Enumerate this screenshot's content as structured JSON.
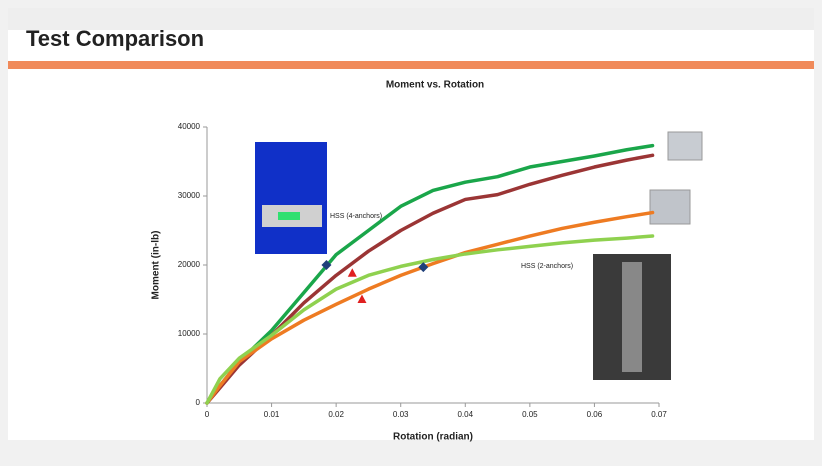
{
  "header": {
    "title": "Test Comparison"
  },
  "chart_data": {
    "type": "line",
    "title": "Moment vs. Rotation",
    "x_label": "Rotation (radian)",
    "y_label": "Moment (in-lb)",
    "x": [
      0,
      0.002,
      0.005,
      0.01,
      0.015,
      0.02,
      0.025,
      0.03,
      0.035,
      0.04,
      0.045,
      0.05,
      0.055,
      0.06,
      0.065,
      0.069
    ],
    "series": [
      {
        "color": "#1aa64a",
        "values": [
          0,
          2500,
          6000,
          10500,
          16000,
          21500,
          25000,
          28500,
          30800,
          32000,
          32800,
          34200,
          35000,
          35800,
          36700,
          37300
        ]
      },
      {
        "color": "#9b3535",
        "values": [
          0,
          2200,
          5500,
          9800,
          14500,
          18500,
          22000,
          25000,
          27500,
          29500,
          30200,
          31700,
          33000,
          34200,
          35200,
          35900
        ]
      },
      {
        "color": "#ee7b22",
        "values": [
          0,
          2500,
          6000,
          9300,
          12000,
          14300,
          16500,
          18500,
          20200,
          21800,
          23000,
          24200,
          25300,
          26200,
          27000,
          27600
        ]
      },
      {
        "color": "#8fd14f",
        "values": [
          0,
          3500,
          6500,
          9800,
          13500,
          16500,
          18500,
          19800,
          20800,
          21600,
          22200,
          22700,
          23200,
          23600,
          23900,
          24200
        ]
      }
    ],
    "markers": [
      {
        "shape": "diamond",
        "color": "#1f3f7a",
        "x": [
          0.0185,
          0.0335
        ],
        "y": [
          20000,
          19700
        ]
      },
      {
        "shape": "triangle",
        "color": "#e02020",
        "x": [
          0.0225,
          0.024
        ],
        "y": [
          18800,
          15000
        ]
      }
    ],
    "annotations": [
      "HSS (4-anchors)",
      "HSS (2-anchors)"
    ],
    "xlim": [
      0,
      0.07
    ],
    "xticks": [
      0,
      0.01,
      0.02,
      0.03,
      0.04,
      0.05,
      0.06,
      0.07
    ],
    "ylim": [
      0,
      40000
    ],
    "yticks": [
      0,
      10000,
      20000,
      30000,
      40000
    ],
    "grid": false
  }
}
